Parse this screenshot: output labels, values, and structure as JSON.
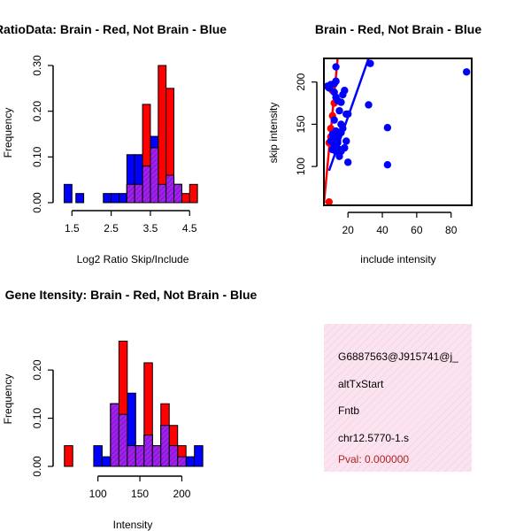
{
  "colors": {
    "brain": "#ff0000",
    "not_brain": "#0000ff",
    "overlap": "#a020f0",
    "line_brain": "#ff0000",
    "line_not_brain": "#0000ff",
    "info_bg": "#f9dcea",
    "pval": "#b22222"
  },
  "chart_data": [
    {
      "id": "ratio",
      "type": "bar",
      "title": "RatioData: Brain - Red, Not Brain - Blue",
      "xlabel": "Log2 Ratio Skip/Include",
      "ylabel": "Frequency",
      "xlim": [
        1.2,
        4.9
      ],
      "ylim": [
        0,
        0.3
      ],
      "xticks": [
        {
          "v": 1.5,
          "label": "1.5"
        },
        {
          "v": 2.5,
          "label": "2.5"
        },
        {
          "v": 3.5,
          "label": "3.5"
        },
        {
          "v": 4.5,
          "label": "4.5"
        }
      ],
      "yticks": [
        {
          "v": 0,
          "label": "0.00"
        },
        {
          "v": 0.1,
          "label": "0.10"
        },
        {
          "v": 0.2,
          "label": "0.20"
        },
        {
          "v": 0.3,
          "label": "0.30"
        }
      ],
      "series": [
        {
          "name": "Not Brain",
          "bins": [
            [
              1.3,
              1.5,
              0.04
            ],
            [
              1.6,
              1.8,
              0.02
            ],
            [
              2.3,
              2.5,
              0.02
            ],
            [
              2.5,
              2.7,
              0.02
            ],
            [
              2.7,
              2.9,
              0.02
            ],
            [
              2.9,
              3.1,
              0.105
            ],
            [
              3.1,
              3.3,
              0.105
            ],
            [
              3.3,
              3.5,
              0.08
            ],
            [
              3.5,
              3.7,
              0.145
            ],
            [
              3.7,
              3.9,
              0.04
            ],
            [
              3.9,
              4.1,
              0.06
            ],
            [
              4.1,
              4.3,
              0.04
            ]
          ]
        },
        {
          "name": "Brain",
          "bins": [
            [
              2.9,
              3.1,
              0.04
            ],
            [
              3.1,
              3.3,
              0.04
            ],
            [
              3.3,
              3.5,
              0.215
            ],
            [
              3.5,
              3.7,
              0.12
            ],
            [
              3.7,
              3.9,
              0.3
            ],
            [
              3.9,
              4.1,
              0.25
            ],
            [
              4.1,
              4.3,
              0.04
            ],
            [
              4.3,
              4.5,
              0.02
            ],
            [
              4.5,
              4.7,
              0.04
            ]
          ]
        }
      ]
    },
    {
      "id": "scatter",
      "type": "scatter",
      "title": "Brain - Red, Not Brain - Blue",
      "xlabel": "include intensity",
      "ylabel": "skip intensity",
      "xlim": [
        6,
        92
      ],
      "ylim": [
        54,
        228
      ],
      "xticks": [
        {
          "v": 20,
          "label": "20"
        },
        {
          "v": 40,
          "label": "40"
        },
        {
          "v": 60,
          "label": "60"
        },
        {
          "v": 80,
          "label": "80"
        }
      ],
      "yticks": [
        {
          "v": 100,
          "label": "100"
        },
        {
          "v": 150,
          "label": "150"
        },
        {
          "v": 200,
          "label": "200"
        }
      ],
      "lines": [
        {
          "name": "Brain fit",
          "x": [
            6,
            14
          ],
          "y": [
            56,
            228
          ],
          "color_key": "line_brain"
        },
        {
          "name": "Not Brain fit",
          "x": [
            9,
            32
          ],
          "y": [
            95,
            228
          ],
          "color_key": "line_not_brain"
        }
      ],
      "series": [
        {
          "name": "Brain",
          "color_key": "brain",
          "points": [
            [
              9,
              128
            ],
            [
              10,
              145
            ],
            [
              11,
              160
            ],
            [
              12,
              175
            ],
            [
              11,
              190
            ],
            [
              10,
              135
            ],
            [
              9,
              58
            ]
          ]
        },
        {
          "name": "Not Brain",
          "color_key": "not_brain",
          "points": [
            [
              8,
              195
            ],
            [
              9,
              193
            ],
            [
              10,
              197
            ],
            [
              12,
              198
            ],
            [
              13,
              201
            ],
            [
              12,
              188
            ],
            [
              13,
              182
            ],
            [
              14,
              178
            ],
            [
              16,
              176
            ],
            [
              17,
              185
            ],
            [
              18,
              190
            ],
            [
              19,
              162
            ],
            [
              20,
              162
            ],
            [
              15,
              166
            ],
            [
              16,
              150
            ],
            [
              17,
              145
            ],
            [
              13,
              142
            ],
            [
              14,
              135
            ],
            [
              11,
              138
            ],
            [
              12,
              125
            ],
            [
              12,
              130
            ],
            [
              13,
              128
            ],
            [
              14,
              130
            ],
            [
              15,
              120
            ],
            [
              16,
              118
            ],
            [
              18,
              122
            ],
            [
              15,
              112
            ],
            [
              14,
              128
            ],
            [
              19,
              130
            ],
            [
              20,
              105
            ],
            [
              13,
              118
            ],
            [
              32,
              173
            ],
            [
              33,
              222
            ],
            [
              13,
              218
            ],
            [
              43,
              146
            ],
            [
              43,
              102
            ],
            [
              89,
              212
            ],
            [
              12,
              155
            ],
            [
              11,
              120
            ],
            [
              10,
              130
            ],
            [
              16,
              140
            ]
          ]
        }
      ]
    },
    {
      "id": "intensity",
      "type": "bar",
      "title": "Gene Itensity: Brain - Red, Not Brain - Blue",
      "xlabel": "Intensity",
      "ylabel": "Frequency",
      "xlim": [
        55,
        228
      ],
      "ylim": [
        0,
        0.27
      ],
      "xticks": [
        {
          "v": 100,
          "label": "100"
        },
        {
          "v": 150,
          "label": "150"
        },
        {
          "v": 200,
          "label": "200"
        }
      ],
      "yticks": [
        {
          "v": 0,
          "label": "0.00"
        },
        {
          "v": 0.1,
          "label": "0.10"
        },
        {
          "v": 0.2,
          "label": "0.20"
        }
      ],
      "series": [
        {
          "name": "Not Brain",
          "bins": [
            [
              95,
              105,
              0.043
            ],
            [
              105,
              115,
              0.02
            ],
            [
              115,
              125,
              0.13
            ],
            [
              125,
              135,
              0.108
            ],
            [
              135,
              145,
              0.152
            ],
            [
              145,
              155,
              0.043
            ],
            [
              155,
              165,
              0.065
            ],
            [
              165,
              175,
              0.043
            ],
            [
              175,
              185,
              0.085
            ],
            [
              185,
              195,
              0.043
            ],
            [
              195,
              205,
              0.02
            ],
            [
              205,
              215,
              0.02
            ],
            [
              215,
              225,
              0.043
            ]
          ]
        },
        {
          "name": "Brain",
          "bins": [
            [
              60,
              70,
              0.043
            ],
            [
              115,
              125,
              0.13
            ],
            [
              125,
              135,
              0.26
            ],
            [
              135,
              145,
              0.043
            ],
            [
              145,
              155,
              0.043
            ],
            [
              155,
              165,
              0.215
            ],
            [
              165,
              175,
              0.043
            ],
            [
              175,
              185,
              0.13
            ],
            [
              185,
              195,
              0.085
            ],
            [
              195,
              205,
              0.043
            ]
          ]
        }
      ]
    }
  ],
  "info_panel": {
    "lines": [
      "G6887563@J915741@j_",
      "altTxStart",
      "Fntb",
      "chr12.5770-1.s"
    ],
    "pval": "Pval: 0.000000"
  }
}
